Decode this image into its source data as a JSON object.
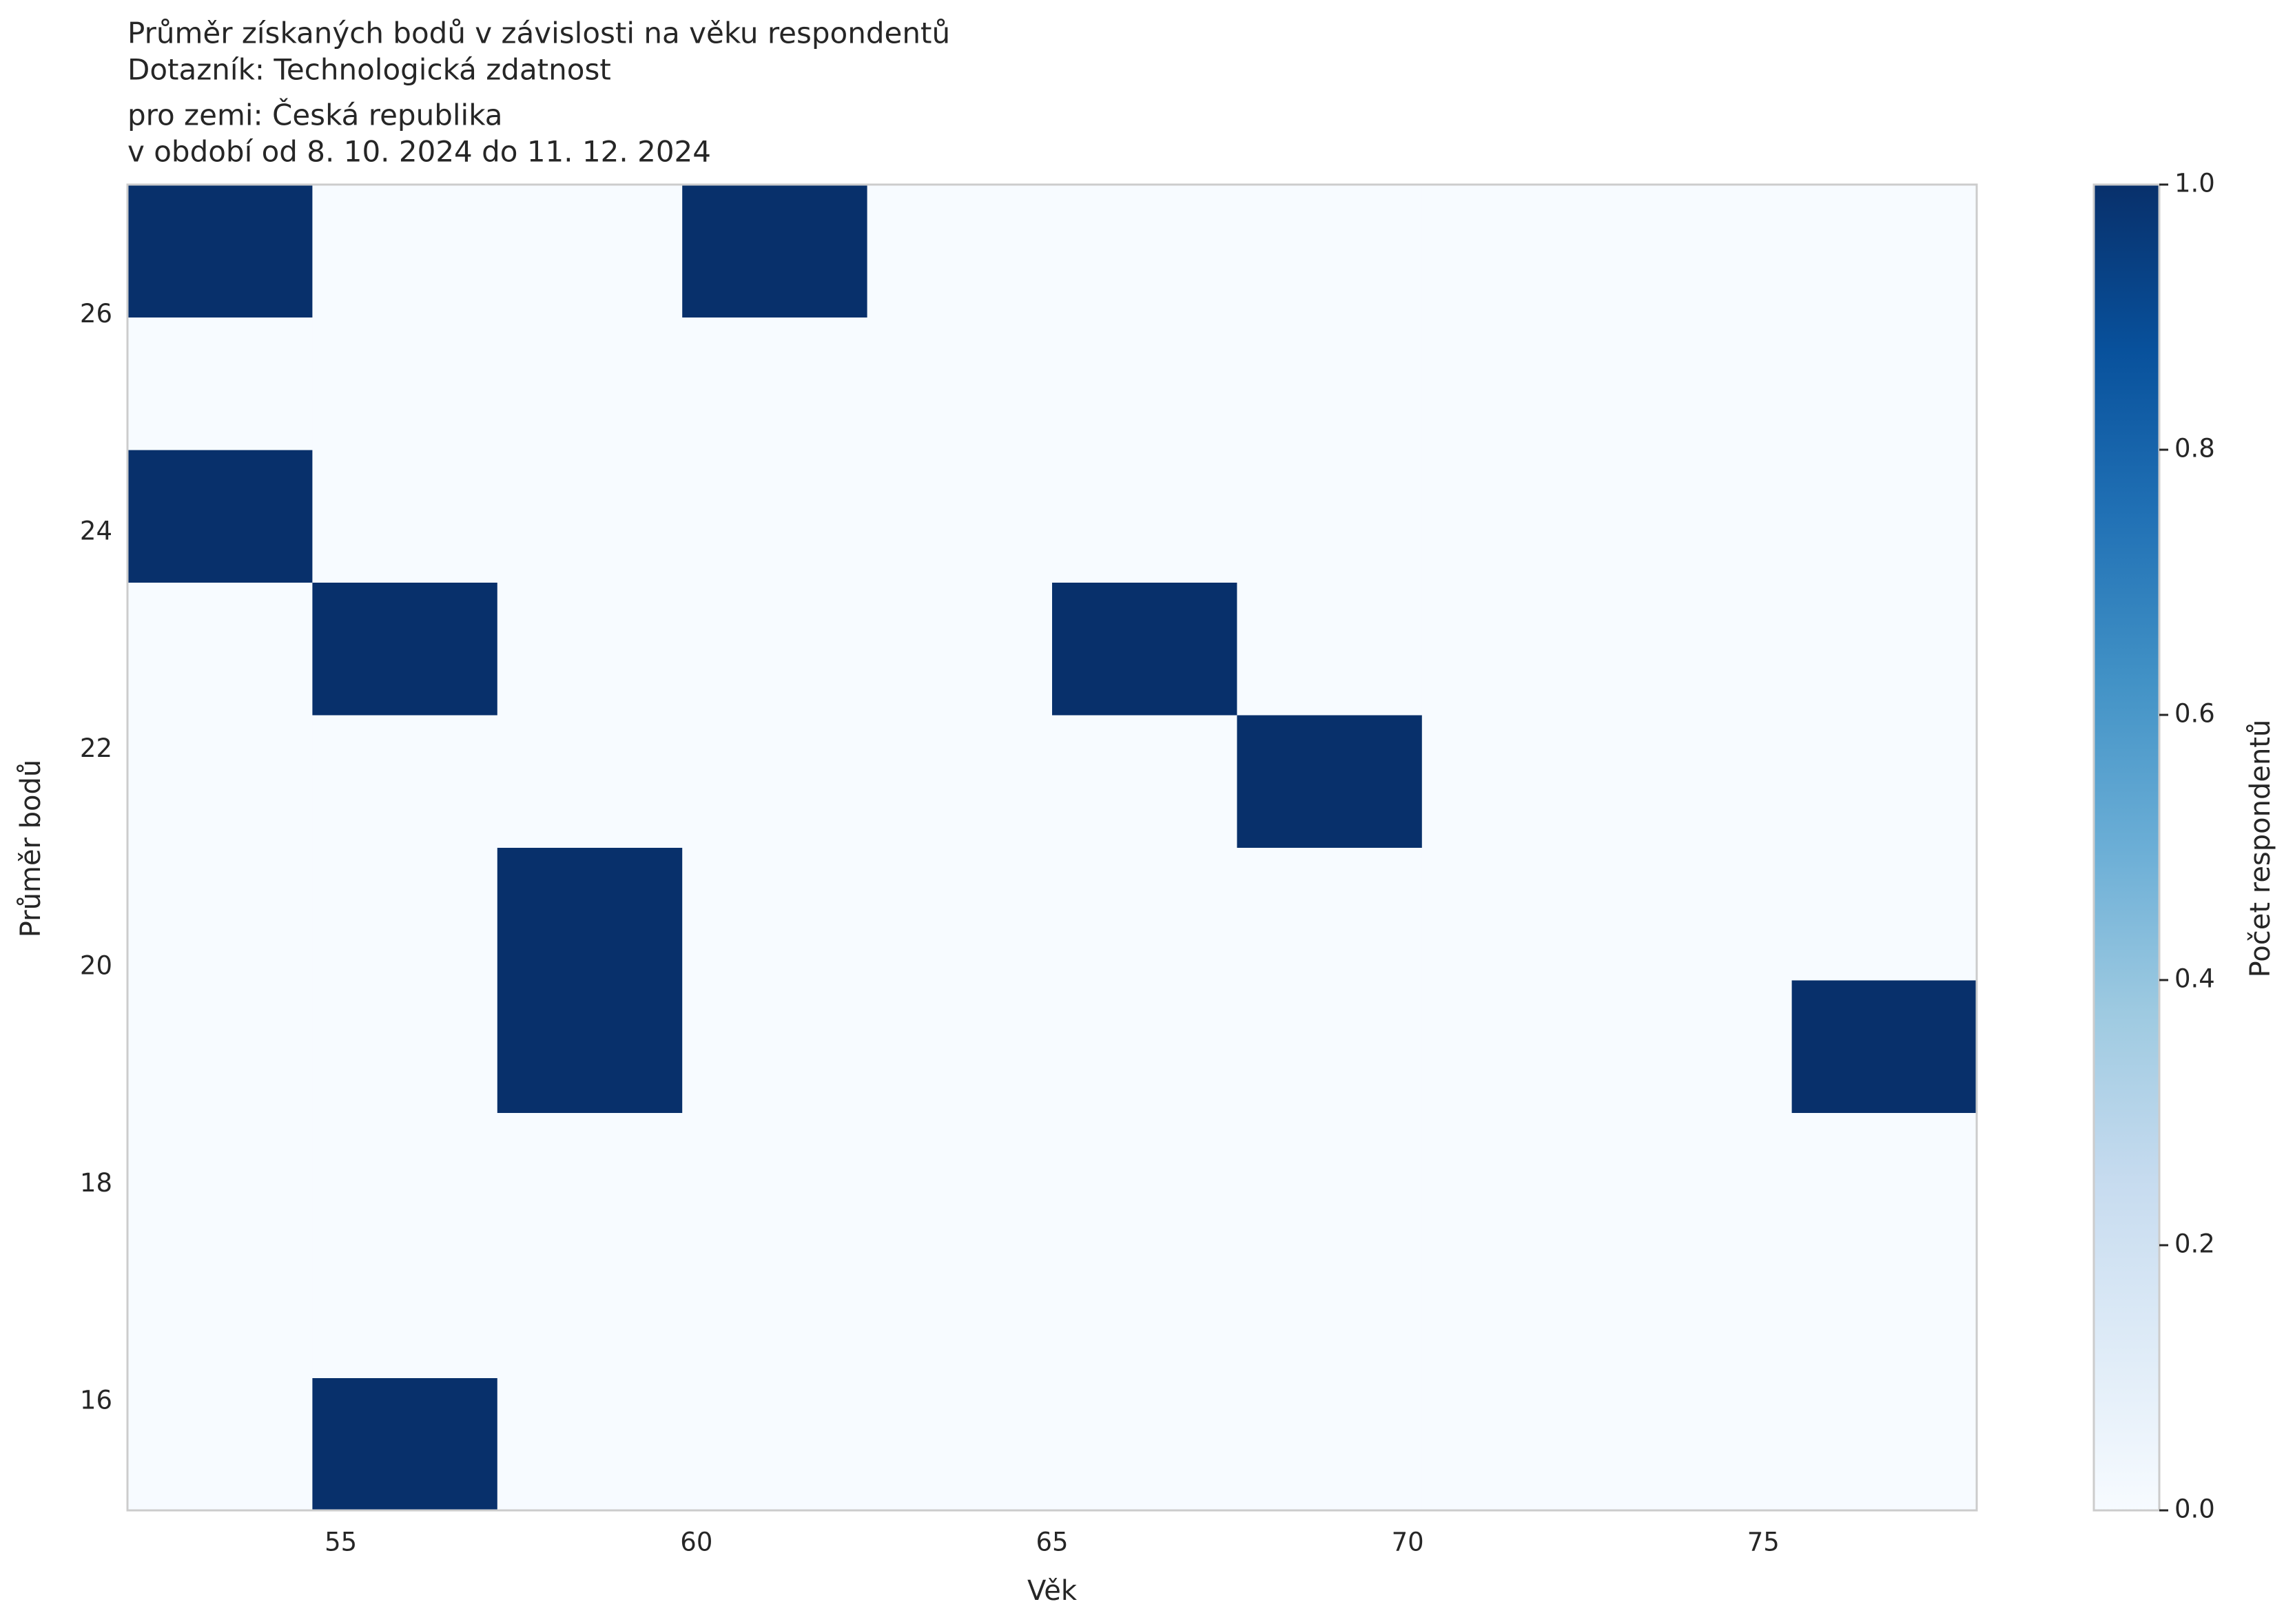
{
  "chart_data": {
    "type": "heatmap",
    "title": [
      "Průměr získaných bodů v závislosti na věku respondentů",
      "Dotazník: Technologická zdatnost",
      "pro zemi: Česká republika",
      "v období od 8. 10. 2024 do 11. 12. 2024"
    ],
    "x_label": "Věk",
    "y_label": "Průměr bodů",
    "colorbar_label": "Počet respondentů",
    "x_bins": [
      52,
      54.6,
      57.2,
      59.8,
      62.4,
      65,
      67.6,
      70.2,
      72.8,
      75.4,
      78
    ],
    "y_bins": [
      15,
      16.22,
      17.44,
      18.66,
      19.88,
      21.1,
      22.32,
      23.54,
      24.76,
      25.98,
      27.2
    ],
    "z": [
      [
        0,
        1,
        0,
        0,
        0,
        0,
        0,
        0,
        0,
        0
      ],
      [
        0,
        0,
        0,
        0,
        0,
        0,
        0,
        0,
        0,
        0
      ],
      [
        0,
        0,
        0,
        0,
        0,
        0,
        0,
        0,
        0,
        0
      ],
      [
        0,
        0,
        1,
        0,
        0,
        0,
        0,
        0,
        0,
        1
      ],
      [
        0,
        0,
        1,
        0,
        0,
        0,
        0,
        0,
        0,
        0
      ],
      [
        0,
        0,
        0,
        0,
        0,
        0,
        1,
        0,
        0,
        0
      ],
      [
        0,
        1,
        0,
        0,
        0,
        1,
        0,
        0,
        0,
        0
      ],
      [
        1,
        0,
        0,
        0,
        0,
        0,
        0,
        0,
        0,
        0
      ],
      [
        0,
        0,
        0,
        0,
        0,
        0,
        0,
        0,
        0,
        0
      ],
      [
        1,
        0,
        0,
        1,
        0,
        0,
        0,
        0,
        0,
        0
      ]
    ],
    "xlim": [
      52,
      78
    ],
    "ylim": [
      15,
      27.2
    ],
    "xticks": [
      55,
      60,
      65,
      70,
      75
    ],
    "yticks": [
      16,
      18,
      20,
      22,
      24,
      26
    ],
    "clim": [
      0,
      1
    ],
    "cticks": [
      {
        "value": 0,
        "label": "0.0"
      },
      {
        "value": 0.2,
        "label": "0.2"
      },
      {
        "value": 0.4,
        "label": "0.4"
      },
      {
        "value": 0.6,
        "label": "0.6"
      },
      {
        "value": 0.8,
        "label": "0.8"
      },
      {
        "value": 1,
        "label": "1.0"
      }
    ],
    "colormap": [
      "#f7fbff",
      "#deebf7",
      "#c6dbef",
      "#9ecae1",
      "#6baed6",
      "#4292c6",
      "#2171b5",
      "#08519c",
      "#08306b"
    ]
  }
}
